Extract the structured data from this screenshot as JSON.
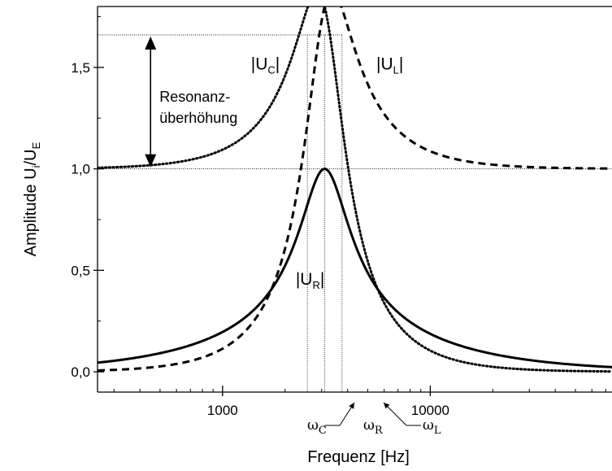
{
  "chart_data": {
    "type": "line",
    "title": "",
    "xlabel": "Frequenz [Hz]",
    "ylabel": "Amplitude U",
    "ylabel_sub1": "i",
    "ylabel_mid": "/U",
    "ylabel_sub2": "E",
    "x_scale": "log",
    "xlim": [
      250,
      75000
    ],
    "ylim": [
      -0.1,
      1.8
    ],
    "x_ticks": [
      {
        "value": 1000,
        "label": "1000"
      },
      {
        "value": 10000,
        "label": "10000"
      }
    ],
    "y_ticks": [
      {
        "value": 0.0,
        "label": "0,0"
      },
      {
        "value": 0.5,
        "label": "0,5"
      },
      {
        "value": 1.0,
        "label": "1,0"
      },
      {
        "value": 1.5,
        "label": "1,5"
      }
    ],
    "resonance_frequency_hz": 3100,
    "quality_factor": 1.8,
    "series": [
      {
        "key": "UR",
        "name_main": "|U",
        "name_sub": "R",
        "name_end": "|",
        "style": "solid",
        "label_x": 2250,
        "label_y": 0.43
      },
      {
        "key": "UC",
        "name_main": "|U",
        "name_sub": "C",
        "name_end": "|",
        "style": "dotted",
        "label_x": 1370,
        "label_y": 1.49
      },
      {
        "key": "UL",
        "name_main": "|U",
        "name_sub": "L",
        "name_end": "|",
        "style": "dashed",
        "label_x": 5500,
        "label_y": 1.49
      }
    ],
    "markers": {
      "omega_c": {
        "x": 2560,
        "main": "ω",
        "sub": "C"
      },
      "omega_r": {
        "x": 3100,
        "main": "ω",
        "sub": "R"
      },
      "omega_l": {
        "x": 3760,
        "main": "ω",
        "sub": "L"
      }
    },
    "reference_lines": {
      "y_peak": 1.66,
      "y_unity": 1.0
    },
    "annotation": {
      "line1": "Resonanz-",
      "line2": "überhöhung",
      "arrow_x": 450,
      "from": 1.0,
      "to": 1.66
    },
    "grid": false,
    "legend": "none"
  }
}
